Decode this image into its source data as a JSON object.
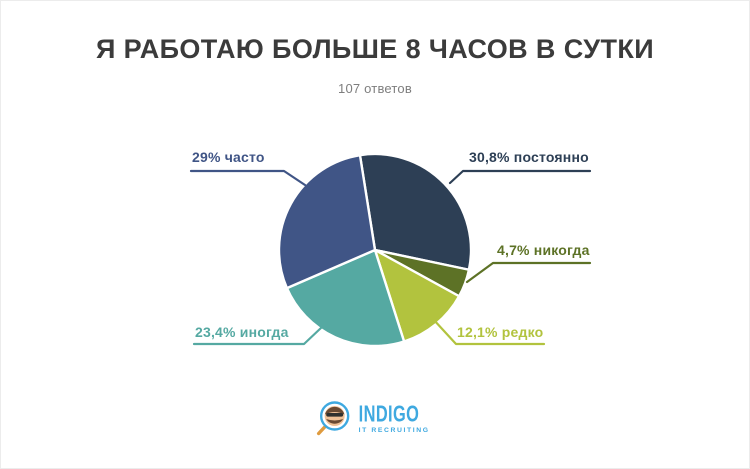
{
  "chart_data": {
    "type": "pie",
    "title": "Я РАБОТАЮ БОЛЬШЕ 8 ЧАСОВ В СУТКИ",
    "subtitle": "107 ответов",
    "total_responses": 107,
    "start_angle_deg": -9,
    "gap_color": "#ffffff",
    "legend_position": "callout-labels",
    "slices": [
      {
        "key": "constantly",
        "label": "постоянно",
        "pct_label": "30,8% постоянно",
        "value": 30.8,
        "color": "#2d3f55"
      },
      {
        "key": "never",
        "label": "никогда",
        "pct_label": "4,7% никогда",
        "value": 4.7,
        "color": "#5d7226"
      },
      {
        "key": "rarely",
        "label": "редко",
        "pct_label": "12,1% редко",
        "value": 12.1,
        "color": "#b2c33e"
      },
      {
        "key": "sometimes",
        "label": "иногда",
        "pct_label": "23,4% иногда",
        "value": 23.4,
        "color": "#55a9a2"
      },
      {
        "key": "often",
        "label": "часто",
        "pct_label": "29% часто",
        "value": 29.0,
        "color": "#405586"
      }
    ]
  },
  "logo": {
    "name": "INDIGO",
    "tagline": "IT RECRUITING",
    "brand_color": "#3fa9e0"
  }
}
